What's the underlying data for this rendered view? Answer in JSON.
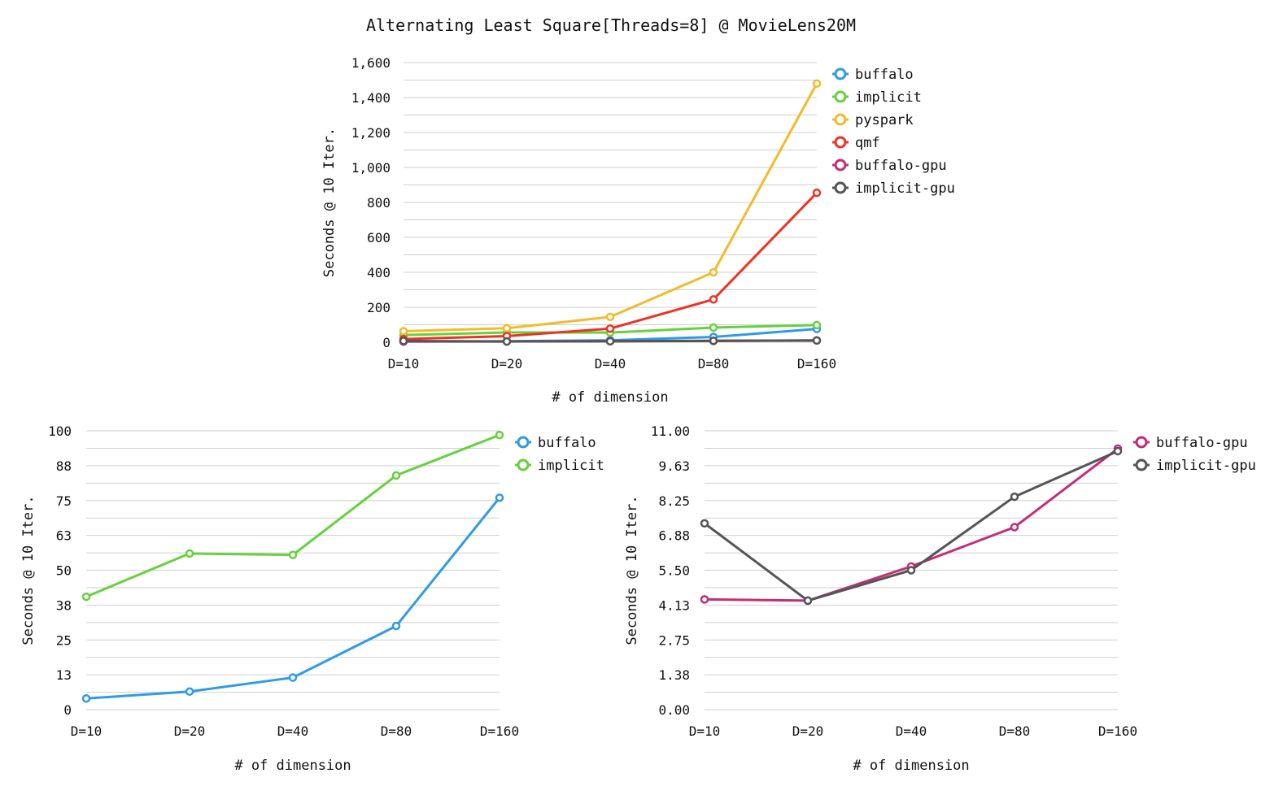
{
  "title": "Alternating Least Square[Threads=8] @ MovieLens20M",
  "colors": {
    "buffalo": "#2f9ae8",
    "implicit": "#66d13e",
    "pyspark": "#f2bb2c",
    "qmf": "#ec3324",
    "buffalo-gpu": "#c32d7a",
    "implicit-gpu": "#555555"
  },
  "chart_data": [
    {
      "type": "line",
      "categories": [
        "D=10",
        "D=20",
        "D=40",
        "D=80",
        "D=160"
      ],
      "xlabel": "# of dimension",
      "ylabel": "Seconds @ 10 Iter.",
      "ylim": [
        0,
        1600
      ],
      "yticks": [
        "0",
        "200",
        "400",
        "600",
        "800",
        "1,000",
        "1,200",
        "1,400",
        "1,600"
      ],
      "grid": true,
      "legend": "right",
      "series": [
        {
          "name": "buffalo",
          "values": [
            4,
            6,
            11,
            30,
            76
          ]
        },
        {
          "name": "implicit",
          "values": [
            41,
            56,
            55,
            84,
            98
          ]
        },
        {
          "name": "pyspark",
          "values": [
            63,
            80,
            145,
            400,
            1480
          ]
        },
        {
          "name": "qmf",
          "values": [
            18,
            35,
            78,
            245,
            855
          ]
        },
        {
          "name": "buffalo-gpu",
          "values": [
            4.3,
            4.3,
            5.6,
            7.1,
            10.2
          ]
        },
        {
          "name": "implicit-gpu",
          "values": [
            7.3,
            4.3,
            5.5,
            8.4,
            10.1
          ]
        }
      ]
    },
    {
      "type": "line",
      "categories": [
        "D=10",
        "D=20",
        "D=40",
        "D=80",
        "D=160"
      ],
      "xlabel": "# of dimension",
      "ylabel": "Seconds @ 10 Iter.",
      "ylim": [
        0,
        100
      ],
      "yticks": [
        "0",
        "13",
        "25",
        "38",
        "50",
        "63",
        "75",
        "88",
        "100"
      ],
      "grid": true,
      "legend": "right",
      "series": [
        {
          "name": "buffalo",
          "values": [
            4,
            6.5,
            11.5,
            30,
            76
          ]
        },
        {
          "name": "implicit",
          "values": [
            40.5,
            56,
            55.5,
            84,
            98.5
          ]
        }
      ]
    },
    {
      "type": "line",
      "categories": [
        "D=10",
        "D=20",
        "D=40",
        "D=80",
        "D=160"
      ],
      "xlabel": "# of dimension",
      "ylabel": "Seconds @ 10 Iter.",
      "ylim": [
        0,
        11
      ],
      "yticks": [
        "0.00",
        "1.38",
        "2.75",
        "4.13",
        "5.50",
        "6.88",
        "8.25",
        "9.63",
        "11.00"
      ],
      "grid": true,
      "legend": "right",
      "series": [
        {
          "name": "buffalo-gpu",
          "values": [
            4.35,
            4.3,
            5.65,
            7.2,
            10.3
          ]
        },
        {
          "name": "implicit-gpu",
          "values": [
            7.35,
            4.3,
            5.5,
            8.4,
            10.2
          ]
        }
      ]
    }
  ]
}
